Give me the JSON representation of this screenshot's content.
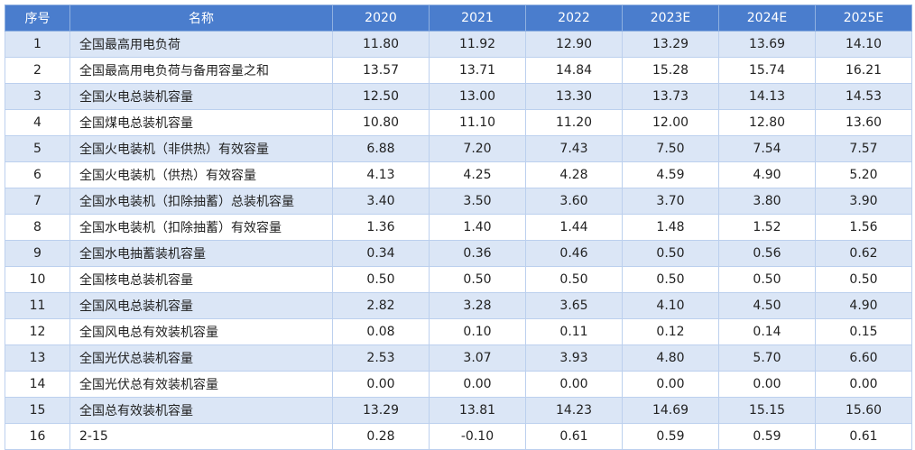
{
  "headers": [
    "序号",
    "名称",
    "2020",
    "2021",
    "2022",
    "2023E",
    "2024E",
    "2025E"
  ],
  "rows": [
    {
      "idx": "1",
      "name": "全国最高用电负荷",
      "v": [
        "11.80",
        "11.92",
        "12.90",
        "13.29",
        "13.69",
        "14.10"
      ]
    },
    {
      "idx": "2",
      "name": "全国最高用电负荷与备用容量之和",
      "v": [
        "13.57",
        "13.71",
        "14.84",
        "15.28",
        "15.74",
        "16.21"
      ]
    },
    {
      "idx": "3",
      "name": "全国火电总装机容量",
      "v": [
        "12.50",
        "13.00",
        "13.30",
        "13.73",
        "14.13",
        "14.53"
      ]
    },
    {
      "idx": "4",
      "name": "全国煤电总装机容量",
      "v": [
        "10.80",
        "11.10",
        "11.20",
        "12.00",
        "12.80",
        "13.60"
      ]
    },
    {
      "idx": "5",
      "name": "全国火电装机（非供热）有效容量",
      "v": [
        "6.88",
        "7.20",
        "7.43",
        "7.50",
        "7.54",
        "7.57"
      ]
    },
    {
      "idx": "6",
      "name": "全国火电装机（供热）有效容量",
      "v": [
        "4.13",
        "4.25",
        "4.28",
        "4.59",
        "4.90",
        "5.20"
      ]
    },
    {
      "idx": "7",
      "name": "全国水电装机（扣除抽蓄）总装机容量",
      "v": [
        "3.40",
        "3.50",
        "3.60",
        "3.70",
        "3.80",
        "3.90"
      ]
    },
    {
      "idx": "8",
      "name": "全国水电装机（扣除抽蓄）有效容量",
      "v": [
        "1.36",
        "1.40",
        "1.44",
        "1.48",
        "1.52",
        "1.56"
      ]
    },
    {
      "idx": "9",
      "name": "全国水电抽蓄装机容量",
      "v": [
        "0.34",
        "0.36",
        "0.46",
        "0.50",
        "0.56",
        "0.62"
      ]
    },
    {
      "idx": "10",
      "name": "全国核电总装机容量",
      "v": [
        "0.50",
        "0.50",
        "0.50",
        "0.50",
        "0.50",
        "0.50"
      ]
    },
    {
      "idx": "11",
      "name": "全国风电总装机容量",
      "v": [
        "2.82",
        "3.28",
        "3.65",
        "4.10",
        "4.50",
        "4.90"
      ]
    },
    {
      "idx": "12",
      "name": "全国风电总有效装机容量",
      "v": [
        "0.08",
        "0.10",
        "0.11",
        "0.12",
        "0.14",
        "0.15"
      ]
    },
    {
      "idx": "13",
      "name": "全国光伏总装机容量",
      "v": [
        "2.53",
        "3.07",
        "3.93",
        "4.80",
        "5.70",
        "6.60"
      ]
    },
    {
      "idx": "14",
      "name": "全国光伏总有效装机容量",
      "v": [
        "0.00",
        "0.00",
        "0.00",
        "0.00",
        "0.00",
        "0.00"
      ]
    },
    {
      "idx": "15",
      "name": "全国总有效装机容量",
      "v": [
        "13.29",
        "13.81",
        "14.23",
        "14.69",
        "15.15",
        "15.60"
      ]
    },
    {
      "idx": "16",
      "name": "2-15",
      "v": [
        "0.28",
        "-0.10",
        "0.61",
        "0.59",
        "0.59",
        "0.61"
      ]
    }
  ],
  "colors": {
    "header_bg": "#4a7dcd",
    "stripe_bg": "#dbe6f6"
  }
}
